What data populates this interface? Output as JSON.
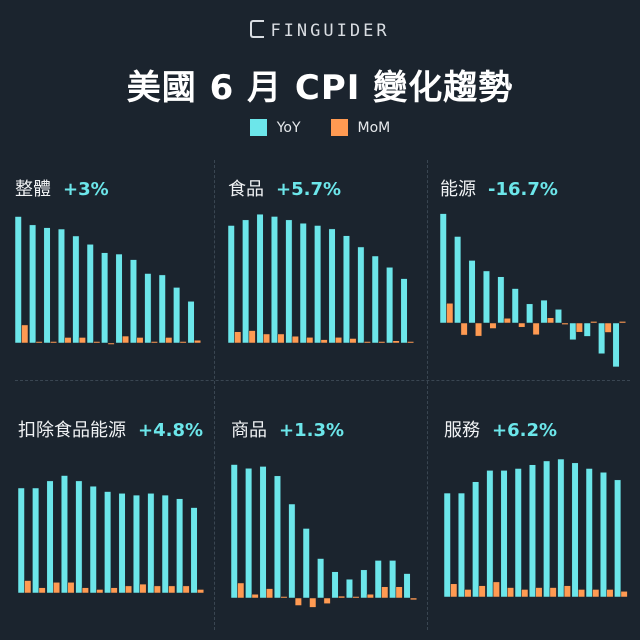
{
  "header": {
    "brand": "FINGUIDER",
    "title": "美國 6 月 CPI 變化趨勢"
  },
  "legend": [
    {
      "label": "YoY",
      "color": "#6ce6ea"
    },
    {
      "label": "MoM",
      "color": "#ff9a52"
    }
  ],
  "colors": {
    "yoy": "#6ce6ea",
    "mom": "#ff9a52",
    "background": "#1b242e"
  },
  "panels": [
    {
      "label": "整體",
      "value": "+3%"
    },
    {
      "label": "食品",
      "value": "+5.7%"
    },
    {
      "label": "能源",
      "value": "-16.7%"
    },
    {
      "label": "扣除食品能源",
      "value": "+4.8%"
    },
    {
      "label": "商品",
      "value": "+1.3%"
    },
    {
      "label": "服務",
      "value": "+6.2%"
    }
  ],
  "chart_data": [
    {
      "type": "bar",
      "title": "整體 +3%",
      "categories": [
        "1",
        "2",
        "3",
        "4",
        "5",
        "6",
        "7",
        "8",
        "9",
        "10",
        "11",
        "12",
        "13"
      ],
      "series": [
        {
          "name": "YoY",
          "values": [
            9.1,
            8.5,
            8.3,
            8.2,
            7.7,
            7.1,
            6.5,
            6.4,
            6.0,
            5.0,
            4.9,
            4.0,
            3.0
          ]
        },
        {
          "name": "MoM",
          "values": [
            1.3,
            0.0,
            0.1,
            0.4,
            0.4,
            0.1,
            -0.1,
            0.5,
            0.4,
            0.1,
            0.4,
            0.1,
            0.2
          ]
        }
      ],
      "legend_position": "top",
      "grid": false
    },
    {
      "type": "bar",
      "title": "食品 +5.7%",
      "categories": [
        "1",
        "2",
        "3",
        "4",
        "5",
        "6",
        "7",
        "8",
        "9",
        "10",
        "11",
        "12",
        "13"
      ],
      "series": [
        {
          "name": "YoY",
          "values": [
            10.4,
            10.9,
            11.4,
            11.2,
            10.9,
            10.6,
            10.4,
            10.1,
            9.5,
            8.5,
            7.7,
            6.7,
            5.7
          ]
        },
        {
          "name": "MoM",
          "values": [
            1.0,
            1.1,
            0.8,
            0.8,
            0.6,
            0.5,
            0.3,
            0.5,
            0.4,
            0.0,
            0.0,
            0.2,
            0.1
          ]
        }
      ],
      "legend_position": "top",
      "grid": false
    },
    {
      "type": "bar",
      "title": "能源 -16.7%",
      "categories": [
        "1",
        "2",
        "3",
        "4",
        "5",
        "6",
        "7",
        "8",
        "9",
        "10",
        "11",
        "12",
        "13"
      ],
      "series": [
        {
          "name": "YoY",
          "values": [
            41.6,
            32.9,
            23.8,
            19.8,
            17.6,
            13.1,
            7.3,
            8.7,
            5.2,
            -6.4,
            -5.1,
            -11.7,
            -16.7
          ]
        },
        {
          "name": "MoM",
          "values": [
            7.5,
            -4.6,
            -5.0,
            -2.1,
            1.8,
            -1.6,
            -4.5,
            2.0,
            -0.6,
            -3.5,
            0.6,
            -3.6,
            0.6
          ]
        }
      ],
      "legend_position": "top",
      "grid": false
    },
    {
      "type": "bar",
      "title": "扣除食品能源 +4.8%",
      "categories": [
        "1",
        "2",
        "3",
        "4",
        "5",
        "6",
        "7",
        "8",
        "9",
        "10",
        "11",
        "12",
        "13"
      ],
      "series": [
        {
          "name": "YoY",
          "values": [
            5.9,
            5.9,
            6.3,
            6.6,
            6.3,
            6.0,
            5.7,
            5.6,
            5.5,
            5.6,
            5.5,
            5.3,
            4.8
          ]
        },
        {
          "name": "MoM",
          "values": [
            0.7,
            0.3,
            0.6,
            0.6,
            0.3,
            0.2,
            0.3,
            0.4,
            0.5,
            0.4,
            0.4,
            0.4,
            0.2
          ]
        }
      ],
      "legend_position": "top",
      "grid": false
    },
    {
      "type": "bar",
      "title": "商品 +1.3%",
      "categories": [
        "1",
        "2",
        "3",
        "4",
        "5",
        "6",
        "7",
        "8",
        "9",
        "10",
        "11",
        "12",
        "13"
      ],
      "series": [
        {
          "name": "YoY",
          "values": [
            7.1,
            6.9,
            7.0,
            6.5,
            5.0,
            3.7,
            2.1,
            1.4,
            1.0,
            1.5,
            2.0,
            2.0,
            1.3
          ]
        },
        {
          "name": "MoM",
          "values": [
            0.8,
            0.2,
            0.5,
            0.0,
            -0.4,
            -0.5,
            -0.3,
            0.1,
            0.0,
            0.2,
            0.6,
            0.6,
            -0.1
          ]
        }
      ],
      "legend_position": "top",
      "grid": false
    },
    {
      "type": "bar",
      "title": "服務 +6.2%",
      "categories": [
        "1",
        "2",
        "3",
        "4",
        "5",
        "6",
        "7",
        "8",
        "9",
        "10",
        "11",
        "12",
        "13"
      ],
      "series": [
        {
          "name": "YoY",
          "values": [
            5.5,
            5.5,
            6.1,
            6.7,
            6.7,
            6.8,
            7.0,
            7.2,
            7.3,
            7.1,
            6.8,
            6.6,
            6.2
          ]
        },
        {
          "name": "MoM",
          "values": [
            0.7,
            0.4,
            0.6,
            0.8,
            0.5,
            0.4,
            0.5,
            0.5,
            0.6,
            0.4,
            0.4,
            0.4,
            0.3
          ]
        }
      ],
      "legend_position": "top",
      "grid": false
    }
  ]
}
